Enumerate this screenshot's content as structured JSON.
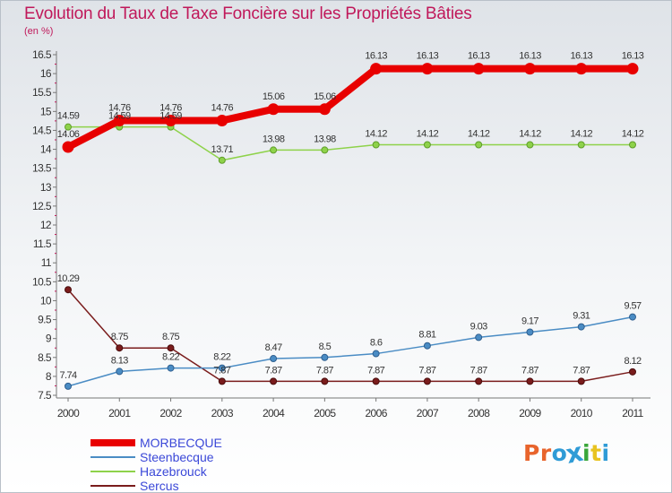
{
  "header": {
    "title": "Evolution du Taux de Taxe Foncière sur les Propriétés Bâties",
    "subtitle": "(en %)"
  },
  "logo": {
    "text": "Proxiti",
    "colors": [
      "#e8642c",
      "#e8642c",
      "#2f9bd6",
      "#2f9bd6",
      "#3aa63a",
      "#e8c320",
      "#2f9bd6"
    ]
  },
  "chart_data": {
    "type": "line",
    "title": "Evolution du Taux de Taxe Foncière sur les Propriétés Bâties",
    "ylabel": "(en %)",
    "x": [
      "2000",
      "2001",
      "2002",
      "2003",
      "2004",
      "2005",
      "2006",
      "2007",
      "2008",
      "2009",
      "2010",
      "2011"
    ],
    "ylim": [
      7.5,
      16.5
    ],
    "yticks": [
      "7.5",
      "8",
      "8.5",
      "9",
      "9.5",
      "10",
      "10.5",
      "11",
      "11.5",
      "12",
      "12.5",
      "13",
      "13.5",
      "14",
      "14.5",
      "15",
      "15.5",
      "16",
      "16.5"
    ],
    "grid": false,
    "legend_position": "bottom-left",
    "series": [
      {
        "name": "MORBECQUE",
        "color": "#e80000",
        "values": [
          14.06,
          14.76,
          14.76,
          14.76,
          15.06,
          15.06,
          16.13,
          16.13,
          16.13,
          16.13,
          16.13,
          16.13
        ],
        "labels": [
          "14.06",
          "14.76",
          "14.76",
          "14.76",
          "15.06",
          "15.06",
          "16.13",
          "16.13",
          "16.13",
          "16.13",
          "16.13",
          "16.13"
        ]
      },
      {
        "name": "Steenbecque",
        "color": "#4a8cc4",
        "values": [
          7.74,
          8.13,
          8.22,
          8.22,
          8.47,
          8.5,
          8.6,
          8.81,
          9.03,
          9.17,
          9.31,
          9.57
        ],
        "labels": [
          "7.74",
          "8.13",
          "8.22",
          "8.22",
          "8.47",
          "8.5",
          "8.6",
          "8.81",
          "9.03",
          "9.17",
          "9.31",
          "9.57"
        ]
      },
      {
        "name": "Hazebrouck",
        "color": "#8ed24a",
        "values": [
          14.59,
          14.59,
          14.59,
          13.71,
          13.98,
          13.98,
          14.12,
          14.12,
          14.12,
          14.12,
          14.12,
          14.12
        ],
        "labels": [
          "14.59",
          "14.59",
          "14.59",
          "13.71",
          "13.98",
          "13.98",
          "14.12",
          "14.12",
          "14.12",
          "14.12",
          "14.12",
          "14.12"
        ]
      },
      {
        "name": "Sercus",
        "color": "#7a1c1c",
        "values": [
          10.29,
          8.75,
          8.75,
          7.87,
          7.87,
          7.87,
          7.87,
          7.87,
          7.87,
          7.87,
          7.87,
          8.12
        ],
        "labels": [
          "10.29",
          "8.75",
          "8.75",
          "7.87",
          "7.87",
          "7.87",
          "7.87",
          "7.87",
          "7.87",
          "7.87",
          "7.87",
          "8.12"
        ]
      }
    ]
  }
}
